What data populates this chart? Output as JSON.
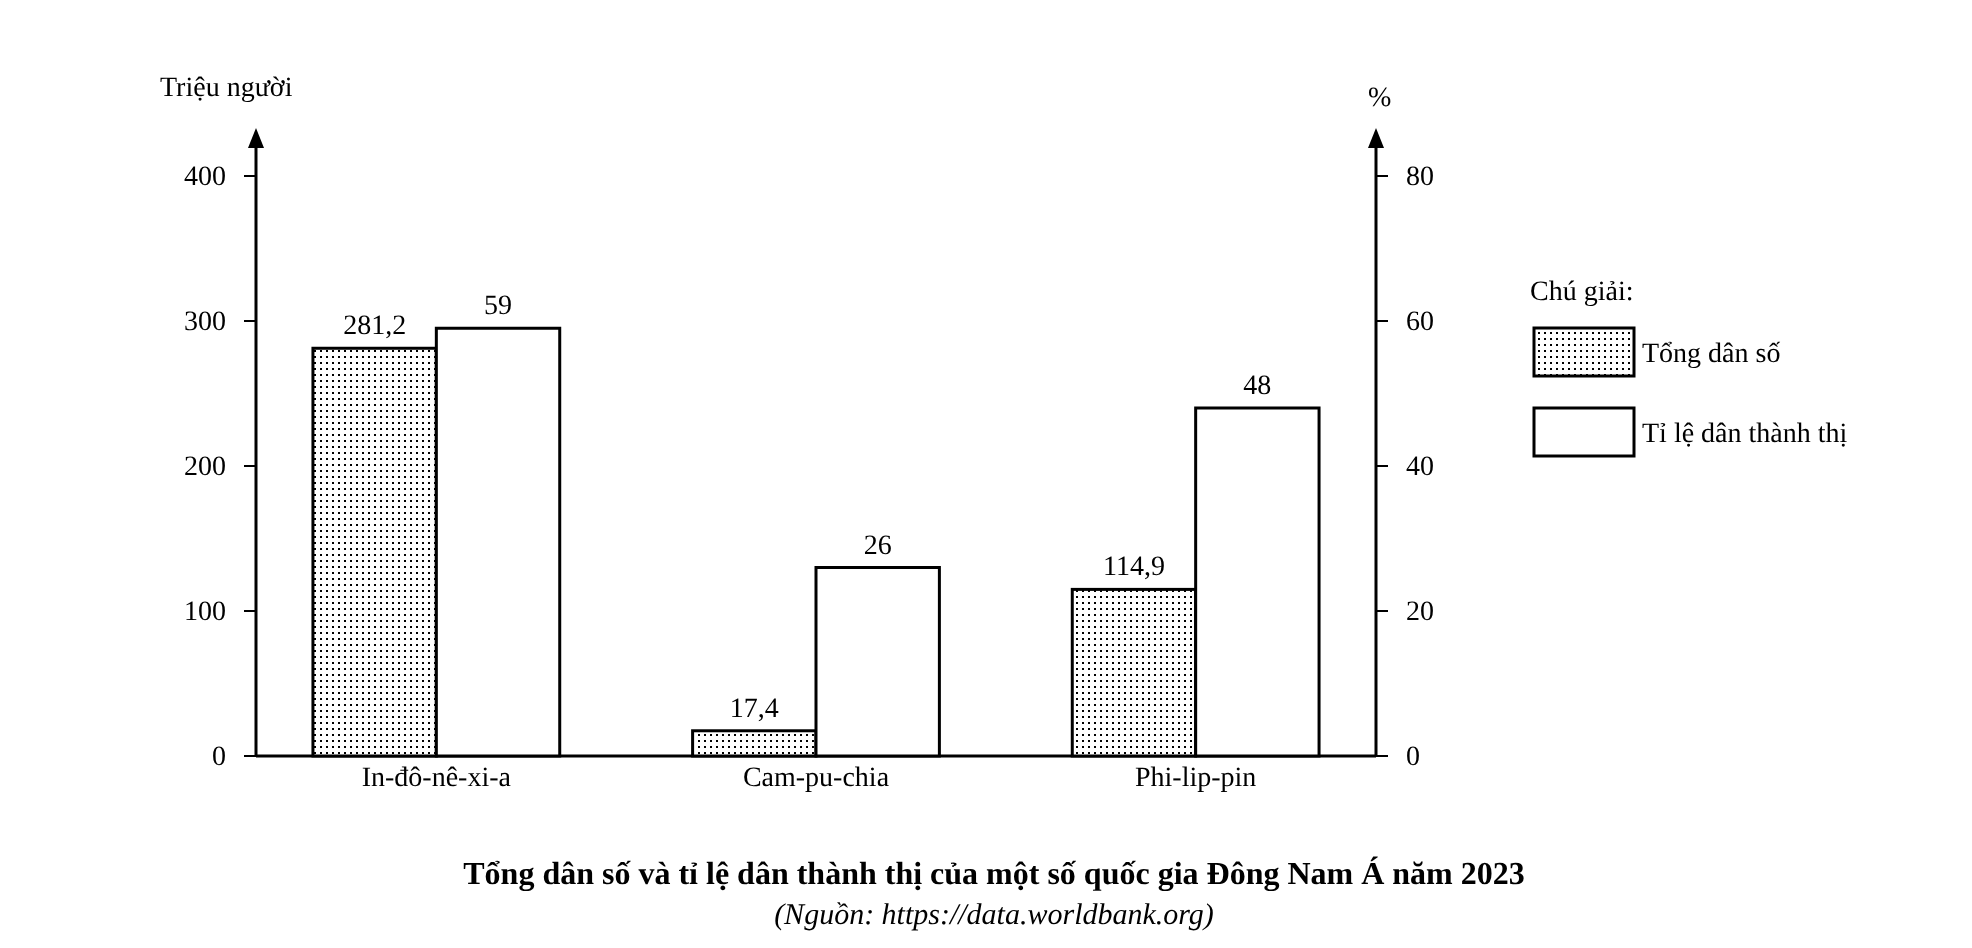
{
  "chart_data": {
    "type": "bar",
    "title": "Tổng dân số và tỉ lệ dân thành thị của một số quốc gia Đông Nam Á năm 2023",
    "annotations": [
      "(Nguồn: https://data.worldbank.org)"
    ],
    "ylabel": "Triệu người",
    "y2label": "%",
    "legend_title": "Chú giải:",
    "categories": [
      "In-đô-nê-xi-a",
      "Cam-pu-chia",
      "Phi-lip-pin"
    ],
    "series": [
      {
        "name": "Tổng dân số",
        "color": "#000000",
        "values": [
          281.2,
          17.4,
          114.9
        ],
        "value_labels": [
          "281,2",
          "17,4",
          "114,9"
        ]
      },
      {
        "name": "Tỉ lệ dân thành thị",
        "color": "#ffffff",
        "values": [
          59,
          26,
          48
        ],
        "value_labels": [
          "59",
          "26",
          "48"
        ],
        "axis": "y2"
      }
    ],
    "ylim": [
      0,
      400
    ],
    "yticks": [
      0,
      100,
      200,
      300,
      400
    ],
    "y2lim": [
      0,
      80
    ],
    "y2ticks": [
      0,
      20,
      40,
      60,
      80
    ],
    "legend": "right",
    "grid": false
  }
}
